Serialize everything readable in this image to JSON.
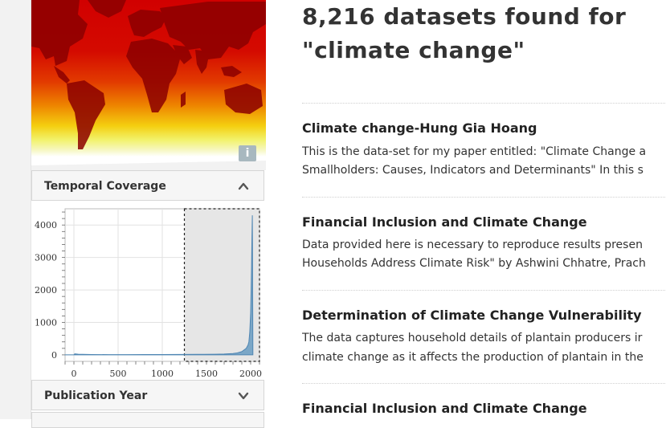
{
  "sidebar": {
    "map": {
      "info_label": "i"
    },
    "panels": {
      "temporal": {
        "title": "Temporal Coverage",
        "icon": "chevron-up-icon"
      },
      "publication": {
        "title": "Publication Year",
        "icon": "chevron-down-icon"
      }
    },
    "chart_data": {
      "type": "area",
      "xlim": [
        -100,
        2100
      ],
      "ylim": [
        -200,
        4500
      ],
      "x_ticks": [
        0,
        500,
        1000,
        1500,
        2000
      ],
      "y_ticks": [
        0,
        1000,
        2000,
        3000,
        4000
      ],
      "x": [
        -100,
        0,
        10,
        50,
        100,
        200,
        400,
        600,
        800,
        1000,
        1200,
        1400,
        1600,
        1700,
        1800,
        1850,
        1900,
        1950,
        1970,
        1980,
        1990,
        2000,
        2005,
        2010,
        2015,
        2019,
        2020,
        2025
      ],
      "values": [
        0,
        0,
        30,
        20,
        15,
        10,
        8,
        8,
        10,
        10,
        12,
        15,
        20,
        25,
        40,
        60,
        100,
        200,
        300,
        400,
        700,
        1300,
        1900,
        2700,
        3600,
        4300,
        3800,
        0
      ],
      "selection": [
        1250,
        2100
      ],
      "series_color": "#7ba7c7"
    }
  },
  "main": {
    "heading": "8,216 datasets found for \"climate change\"",
    "results": [
      {
        "title": "Climate change-Hung Gia Hoang",
        "desc_line1": "This is the data-set for my paper entitled: \"Climate Change a",
        "desc_line2": "Smallholders: Causes, Indicators and Determinants\" In this s"
      },
      {
        "title": "Financial Inclusion and Climate Change",
        "desc_line1": "Data provided here is necessary to reproduce results presen",
        "desc_line2": "Households Address Climate Risk\" by Ashwini Chhatre, Prach"
      },
      {
        "title": "Determination of Climate Change Vulnerability",
        "desc_line1": "The data captures household details of plantain producers ir",
        "desc_line2": "climate change as it affects the production of plantain in the"
      },
      {
        "title": "Financial Inclusion and Climate Change"
      }
    ]
  }
}
